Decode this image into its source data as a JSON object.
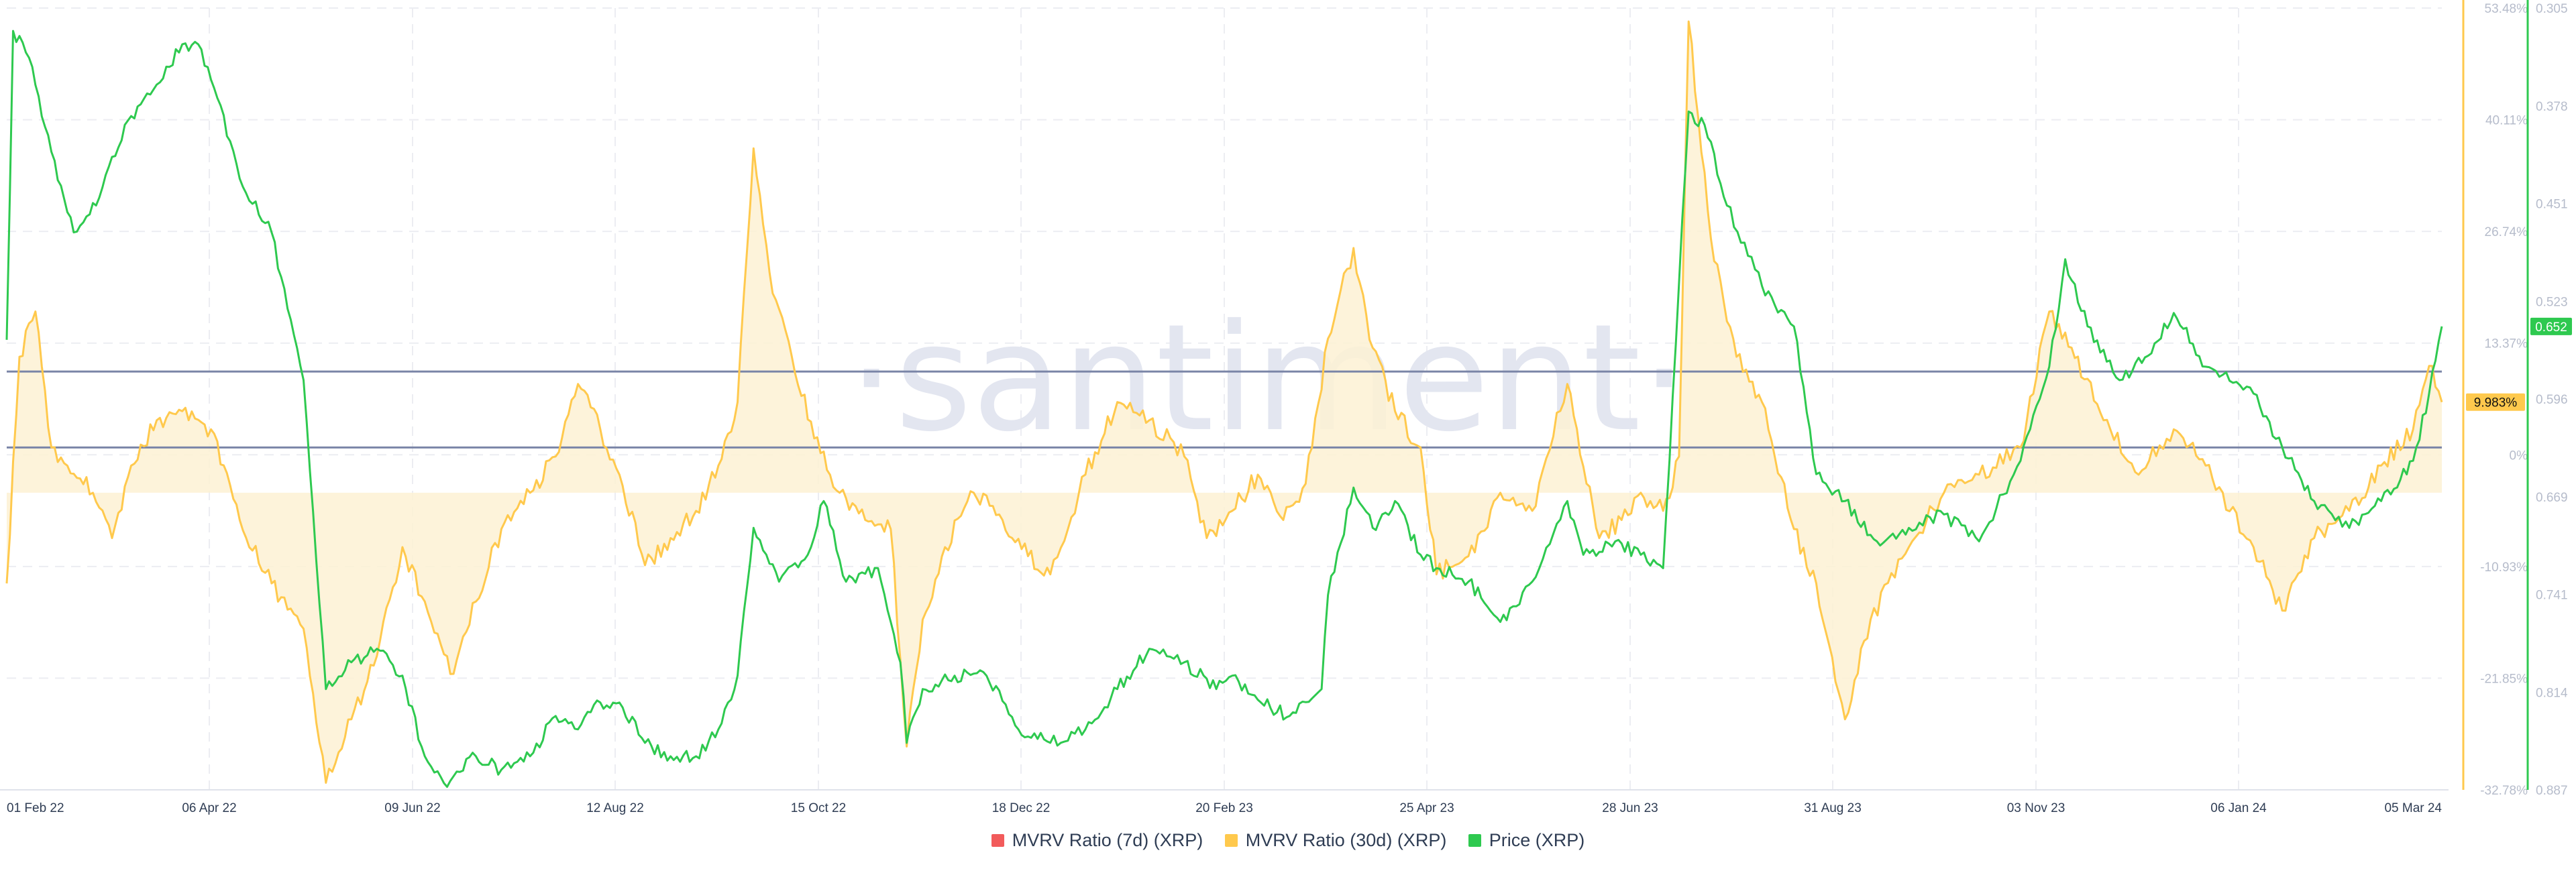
{
  "watermark": "·santiment·",
  "colors": {
    "mvrv7": "#f25b5b",
    "mvrv30": "#ffc94d",
    "mvrv30_fill": "#fdf1d4",
    "price": "#2ec94f",
    "ref_line": "#7a85a7",
    "grid": "#ecedf2"
  },
  "chart_data": {
    "type": "line",
    "x_ticks": [
      "01 Feb 22",
      "06 Apr 22",
      "09 Jun 22",
      "12 Aug 22",
      "15 Oct 22",
      "18 Dec 22",
      "20 Feb 23",
      "25 Apr 23",
      "28 Jun 23",
      "31 Aug 23",
      "03 Nov 23",
      "06 Jan 24",
      "05 Mar 24"
    ],
    "y_left": {
      "ticks": [
        "53.48%",
        "40.11%",
        "26.74%",
        "13.37%",
        "0%",
        "-10.93%",
        "-21.85%",
        "-32.78%"
      ],
      "range": [
        -32.78,
        53.48
      ]
    },
    "y_right": {
      "ticks": [
        "0.887",
        "0.814",
        "0.741",
        "0.669",
        "0.596",
        "0.523",
        "0.451",
        "0.378",
        "0.305"
      ],
      "range": [
        0.305,
        0.887
      ]
    },
    "x_range": [
      "2022-02-01",
      "2024-03-05"
    ],
    "series": [
      {
        "name": "MVRV Ratio (7d) (XRP)",
        "axis": "left",
        "color": "#f25b5b",
        "points": []
      },
      {
        "name": "MVRV Ratio (30d) (XRP)",
        "axis": "left",
        "color": "#ffc94d",
        "points": [
          [
            "2022-02-01",
            -10
          ],
          [
            "2022-02-05",
            15
          ],
          [
            "2022-02-10",
            20
          ],
          [
            "2022-02-15",
            5
          ],
          [
            "2022-02-20",
            3
          ],
          [
            "2022-02-28",
            0
          ],
          [
            "2022-03-06",
            -5
          ],
          [
            "2022-03-12",
            3
          ],
          [
            "2022-03-20",
            8
          ],
          [
            "2022-03-28",
            9
          ],
          [
            "2022-04-06",
            7
          ],
          [
            "2022-04-15",
            -3
          ],
          [
            "2022-04-25",
            -10
          ],
          [
            "2022-05-05",
            -15
          ],
          [
            "2022-05-12",
            -32
          ],
          [
            "2022-05-20",
            -25
          ],
          [
            "2022-05-28",
            -18
          ],
          [
            "2022-06-05",
            -6
          ],
          [
            "2022-06-12",
            -12
          ],
          [
            "2022-06-20",
            -20
          ],
          [
            "2022-06-28",
            -12
          ],
          [
            "2022-07-06",
            -4
          ],
          [
            "2022-07-15",
            0
          ],
          [
            "2022-07-23",
            4
          ],
          [
            "2022-07-30",
            12
          ],
          [
            "2022-08-06",
            7
          ],
          [
            "2022-08-12",
            2
          ],
          [
            "2022-08-20",
            -8
          ],
          [
            "2022-08-28",
            -5
          ],
          [
            "2022-09-05",
            -2
          ],
          [
            "2022-09-12",
            3
          ],
          [
            "2022-09-18",
            10
          ],
          [
            "2022-09-23",
            38
          ],
          [
            "2022-09-29",
            22
          ],
          [
            "2022-10-05",
            15
          ],
          [
            "2022-10-12",
            6
          ],
          [
            "2022-10-20",
            0
          ],
          [
            "2022-10-28",
            -3
          ],
          [
            "2022-11-05",
            -4
          ],
          [
            "2022-11-10",
            -28
          ],
          [
            "2022-11-15",
            -14
          ],
          [
            "2022-11-22",
            -6
          ],
          [
            "2022-12-01",
            0
          ],
          [
            "2022-12-10",
            -3
          ],
          [
            "2022-12-18",
            -7
          ],
          [
            "2022-12-25",
            -9
          ],
          [
            "2023-01-05",
            2
          ],
          [
            "2023-01-15",
            10
          ],
          [
            "2023-01-25",
            8
          ],
          [
            "2023-02-05",
            4
          ],
          [
            "2023-02-12",
            -5
          ],
          [
            "2023-02-20",
            -2
          ],
          [
            "2023-02-28",
            2
          ],
          [
            "2023-03-08",
            -3
          ],
          [
            "2023-03-15",
            1
          ],
          [
            "2023-03-22",
            17
          ],
          [
            "2023-03-30",
            27
          ],
          [
            "2023-04-05",
            16
          ],
          [
            "2023-04-12",
            9
          ],
          [
            "2023-04-20",
            5
          ],
          [
            "2023-04-25",
            -9
          ],
          [
            "2023-05-05",
            -7
          ],
          [
            "2023-05-15",
            0
          ],
          [
            "2023-05-25",
            -2
          ],
          [
            "2023-06-05",
            12
          ],
          [
            "2023-06-15",
            -5
          ],
          [
            "2023-06-22",
            -3
          ],
          [
            "2023-06-28",
            0
          ],
          [
            "2023-07-05",
            -2
          ],
          [
            "2023-07-10",
            4
          ],
          [
            "2023-07-13",
            52
          ],
          [
            "2023-07-20",
            28
          ],
          [
            "2023-07-28",
            15
          ],
          [
            "2023-08-05",
            10
          ],
          [
            "2023-08-15",
            -4
          ],
          [
            "2023-08-22",
            -10
          ],
          [
            "2023-08-31",
            -25
          ],
          [
            "2023-09-08",
            -14
          ],
          [
            "2023-09-20",
            -6
          ],
          [
            "2023-10-01",
            0
          ],
          [
            "2023-10-12",
            2
          ],
          [
            "2023-10-25",
            5
          ],
          [
            "2023-11-03",
            20
          ],
          [
            "2023-11-10",
            16
          ],
          [
            "2023-11-20",
            8
          ],
          [
            "2023-12-01",
            2
          ],
          [
            "2023-12-12",
            7
          ],
          [
            "2023-12-22",
            3
          ],
          [
            "2024-01-06",
            -6
          ],
          [
            "2024-01-15",
            -13
          ],
          [
            "2024-01-25",
            -5
          ],
          [
            "2024-02-05",
            -2
          ],
          [
            "2024-02-15",
            3
          ],
          [
            "2024-02-25",
            7
          ],
          [
            "2024-03-01",
            14
          ],
          [
            "2024-03-05",
            10
          ]
        ]
      },
      {
        "name": "Price (XRP)",
        "axis": "right",
        "color": "#2ec94f",
        "points": [
          [
            "2022-02-01",
            0.64
          ],
          [
            "2022-02-03",
            0.87
          ],
          [
            "2022-02-08",
            0.85
          ],
          [
            "2022-02-15",
            0.78
          ],
          [
            "2022-02-22",
            0.72
          ],
          [
            "2022-03-01",
            0.74
          ],
          [
            "2022-03-10",
            0.8
          ],
          [
            "2022-03-20",
            0.83
          ],
          [
            "2022-03-28",
            0.86
          ],
          [
            "2022-04-02",
            0.86
          ],
          [
            "2022-04-08",
            0.82
          ],
          [
            "2022-04-15",
            0.76
          ],
          [
            "2022-04-25",
            0.72
          ],
          [
            "2022-05-05",
            0.61
          ],
          [
            "2022-05-12",
            0.38
          ],
          [
            "2022-05-20",
            0.4
          ],
          [
            "2022-05-28",
            0.41
          ],
          [
            "2022-06-05",
            0.39
          ],
          [
            "2022-06-12",
            0.33
          ],
          [
            "2022-06-18",
            0.31
          ],
          [
            "2022-06-28",
            0.33
          ],
          [
            "2022-07-06",
            0.32
          ],
          [
            "2022-07-15",
            0.33
          ],
          [
            "2022-07-23",
            0.36
          ],
          [
            "2022-07-30",
            0.35
          ],
          [
            "2022-08-06",
            0.37
          ],
          [
            "2022-08-12",
            0.37
          ],
          [
            "2022-08-20",
            0.34
          ],
          [
            "2022-08-28",
            0.33
          ],
          [
            "2022-09-05",
            0.33
          ],
          [
            "2022-09-12",
            0.35
          ],
          [
            "2022-09-18",
            0.39
          ],
          [
            "2022-09-23",
            0.5
          ],
          [
            "2022-10-01",
            0.46
          ],
          [
            "2022-10-10",
            0.48
          ],
          [
            "2022-10-15",
            0.52
          ],
          [
            "2022-10-22",
            0.46
          ],
          [
            "2022-11-01",
            0.47
          ],
          [
            "2022-11-08",
            0.4
          ],
          [
            "2022-11-10",
            0.34
          ],
          [
            "2022-11-15",
            0.38
          ],
          [
            "2022-11-25",
            0.39
          ],
          [
            "2022-12-05",
            0.39
          ],
          [
            "2022-12-15",
            0.35
          ],
          [
            "2022-12-25",
            0.34
          ],
          [
            "2023-01-05",
            0.35
          ],
          [
            "2023-01-15",
            0.38
          ],
          [
            "2023-01-25",
            0.41
          ],
          [
            "2023-02-05",
            0.4
          ],
          [
            "2023-02-15",
            0.38
          ],
          [
            "2023-02-20",
            0.39
          ],
          [
            "2023-03-01",
            0.37
          ],
          [
            "2023-03-10",
            0.36
          ],
          [
            "2023-03-20",
            0.38
          ],
          [
            "2023-03-22",
            0.45
          ],
          [
            "2023-03-30",
            0.53
          ],
          [
            "2023-04-05",
            0.5
          ],
          [
            "2023-04-12",
            0.52
          ],
          [
            "2023-04-20",
            0.48
          ],
          [
            "2023-04-25",
            0.47
          ],
          [
            "2023-05-05",
            0.46
          ],
          [
            "2023-05-15",
            0.43
          ],
          [
            "2023-05-25",
            0.46
          ],
          [
            "2023-06-05",
            0.52
          ],
          [
            "2023-06-10",
            0.48
          ],
          [
            "2023-06-20",
            0.49
          ],
          [
            "2023-06-28",
            0.48
          ],
          [
            "2023-07-05",
            0.47
          ],
          [
            "2023-07-13",
            0.81
          ],
          [
            "2023-07-18",
            0.8
          ],
          [
            "2023-07-25",
            0.74
          ],
          [
            "2023-08-05",
            0.68
          ],
          [
            "2023-08-15",
            0.65
          ],
          [
            "2023-08-22",
            0.54
          ],
          [
            "2023-08-31",
            0.52
          ],
          [
            "2023-09-10",
            0.49
          ],
          [
            "2023-09-20",
            0.5
          ],
          [
            "2023-10-01",
            0.51
          ],
          [
            "2023-10-12",
            0.49
          ],
          [
            "2023-10-25",
            0.55
          ],
          [
            "2023-11-03",
            0.62
          ],
          [
            "2023-11-08",
            0.7
          ],
          [
            "2023-11-15",
            0.65
          ],
          [
            "2023-11-25",
            0.61
          ],
          [
            "2023-12-05",
            0.63
          ],
          [
            "2023-12-12",
            0.66
          ],
          [
            "2023-12-22",
            0.62
          ],
          [
            "2024-01-06",
            0.6
          ],
          [
            "2024-01-15",
            0.56
          ],
          [
            "2024-01-25",
            0.52
          ],
          [
            "2024-02-05",
            0.5
          ],
          [
            "2024-02-15",
            0.52
          ],
          [
            "2024-02-25",
            0.55
          ],
          [
            "2024-03-01",
            0.6
          ],
          [
            "2024-03-05",
            0.65
          ]
        ]
      }
    ],
    "reference_lines": [
      {
        "axis": "left",
        "value": 13.37
      },
      {
        "axis": "left",
        "value": 5.0
      }
    ],
    "current_values": {
      "mvrv30": "9.983%",
      "price": "0.652"
    },
    "legend_position": "bottom-center",
    "grid": true
  },
  "legend": [
    {
      "label": "MVRV Ratio (7d) (XRP)",
      "color": "#f25b5b"
    },
    {
      "label": "MVRV Ratio (30d) (XRP)",
      "color": "#ffc94d"
    },
    {
      "label": "Price (XRP)",
      "color": "#2ec94f"
    }
  ]
}
